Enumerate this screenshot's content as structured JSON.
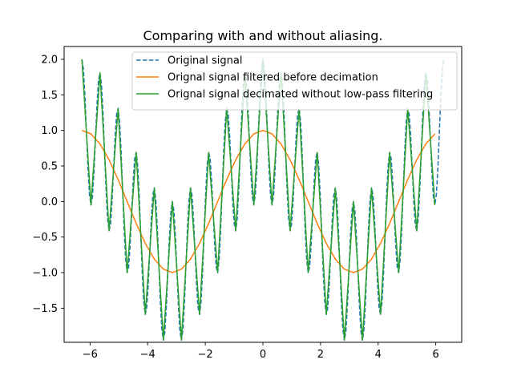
{
  "chart_data": {
    "type": "line",
    "title": "Comparing with and without aliasing.",
    "xlabel": "",
    "ylabel": "",
    "xlim": [
      -6.9,
      6.9
    ],
    "ylim": [
      -1.98,
      2.18
    ],
    "xticks": [
      -6,
      -4,
      -2,
      0,
      2,
      4,
      6
    ],
    "xtick_labels": [
      "−6",
      "−4",
      "−2",
      "0",
      "2",
      "4",
      "6"
    ],
    "yticks": [
      -1.5,
      -1.0,
      -0.5,
      0.0,
      0.5,
      1.0,
      1.5,
      2.0
    ],
    "ytick_labels": [
      "−1.5",
      "−1.0",
      "−0.5",
      "0.0",
      "0.5",
      "1.0",
      "1.5",
      "2.0"
    ],
    "grid": false,
    "legend_position": "top-right",
    "series": [
      {
        "name": "Original signal",
        "color": "#1f77b4",
        "style": "dashed",
        "x_start": -6.2832,
        "x_end": 6.2832,
        "n_points": 241,
        "formula": "cos(x) + cos(10x)"
      },
      {
        "name": "Orignal signal filtered before decimation",
        "color": "#ff7f0e",
        "style": "solid",
        "x_start": -6.2832,
        "x_end": 5.969,
        "n_points": 40,
        "formula": "cos(x)"
      },
      {
        "name": "Orignal signal decimated without low-pass filtering",
        "color": "#2ca02c",
        "style": "solid",
        "x_start": -6.2832,
        "x_end": 5.969,
        "n_points": 40,
        "formula": "cos(x) + cos(10x)"
      }
    ]
  }
}
